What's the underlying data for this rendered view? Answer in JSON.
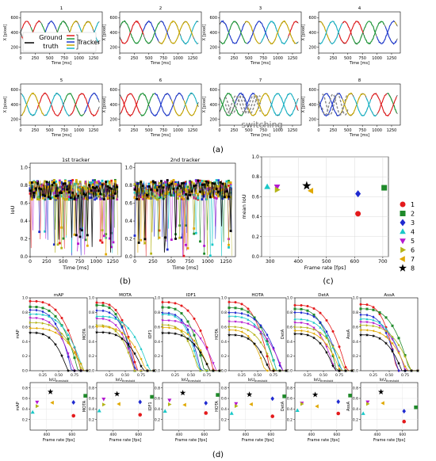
{
  "figure": {
    "panel_labels": [
      "(a)",
      "(b)",
      "(c)",
      "(d)"
    ]
  },
  "chart_data": [
    {
      "type": "line",
      "panel": "a",
      "subplot_titles": [
        "1",
        "2",
        "3",
        "4",
        "5",
        "6",
        "7",
        "8"
      ],
      "ylabel": "X [pixel]",
      "xlabel": "Time [ms]",
      "xticks": [
        0,
        250,
        500,
        750,
        1000,
        1250
      ],
      "yticks": [
        200,
        400,
        600
      ],
      "xlim": [
        0,
        1400
      ],
      "ylim": [
        120,
        680
      ],
      "series": [
        {
          "name": "ground-truth",
          "color": "#000000",
          "amplitude": 150,
          "period_ms": 420
        },
        {
          "name": "tracker-a",
          "color": "#e41a1c"
        },
        {
          "name": "tracker-b",
          "color": "#1f9a3a"
        },
        {
          "name": "tracker-c",
          "color": "#1f3ad0"
        },
        {
          "name": "tracker-d",
          "color": "#c8a800"
        },
        {
          "name": "tracker-e",
          "color": "#19b5c8"
        }
      ],
      "legend_items": [
        "Ground truth",
        "Tracker"
      ],
      "annotation": "switching"
    },
    {
      "type": "scatter",
      "panel": "b",
      "subplot_titles": [
        "1st tracker",
        "2nd tracker"
      ],
      "ylabel": "IoU",
      "xlabel": "Time [ms]",
      "xticks": [
        0,
        250,
        500,
        750,
        1000,
        1250
      ],
      "yticks": [
        0.0,
        0.2,
        0.4,
        0.6,
        0.8,
        1.0
      ],
      "xlim": [
        0,
        1380
      ],
      "ylim": [
        0,
        1.05
      ]
    },
    {
      "type": "scatter",
      "panel": "c",
      "xlabel": "Frame rate [fps]",
      "ylabel": "mean IoU",
      "xticks": [
        300,
        400,
        500,
        600,
        700
      ],
      "yticks": [
        0.0,
        0.2,
        0.4,
        0.6,
        0.8,
        1.0
      ],
      "xlim": [
        270,
        720
      ],
      "ylim": [
        0,
        1.0
      ],
      "points": [
        {
          "name": "1",
          "x": 612,
          "y": 0.43,
          "color": "#e41a1c",
          "marker": "circle"
        },
        {
          "name": "2",
          "x": 705,
          "y": 0.69,
          "color": "#1f8a2a",
          "marker": "square"
        },
        {
          "name": "3",
          "x": 612,
          "y": 0.63,
          "color": "#1f2ad0",
          "marker": "diamond"
        },
        {
          "name": "4",
          "x": 290,
          "y": 0.7,
          "color": "#19c8c8",
          "marker": "triangle-up"
        },
        {
          "name": "5",
          "x": 325,
          "y": 0.7,
          "color": "#b419d0",
          "marker": "triangle-down"
        },
        {
          "name": "6",
          "x": 325,
          "y": 0.67,
          "color": "#b4b419",
          "marker": "triangle-right"
        },
        {
          "name": "7",
          "x": 445,
          "y": 0.66,
          "color": "#e0a800",
          "marker": "triangle-left"
        },
        {
          "name": "8",
          "x": 430,
          "y": 0.71,
          "color": "#000000",
          "marker": "star"
        }
      ]
    },
    {
      "type": "line",
      "panel": "d",
      "metrics": [
        {
          "title": "mAP",
          "ylabel": "mAP"
        },
        {
          "title": "MOTA",
          "ylabel": "MOTA"
        },
        {
          "title": "IDF1",
          "ylabel": "IDF1"
        },
        {
          "title": "HOTA",
          "ylabel": "HOTA"
        },
        {
          "title": "DetA",
          "ylabel": "DetA"
        },
        {
          "title": "AssA",
          "ylabel": "AssA"
        }
      ],
      "top_xlabel": "IoU_threshold",
      "top_xlabel_main": "IoU",
      "top_xlabel_sub": "threshold",
      "top_xticks": [
        "0.25",
        "0.50",
        "0.75"
      ],
      "top_yticks": [
        "0.0",
        "0.2",
        "0.4",
        "0.6",
        "0.8",
        "1.0"
      ],
      "bottom_xlabel": "Frame rate [fps]",
      "bottom_xticks": [
        "400",
        "600"
      ],
      "bottom_yticks": [
        "0.2",
        "0.4",
        "0.6",
        "0.8"
      ]
    }
  ]
}
